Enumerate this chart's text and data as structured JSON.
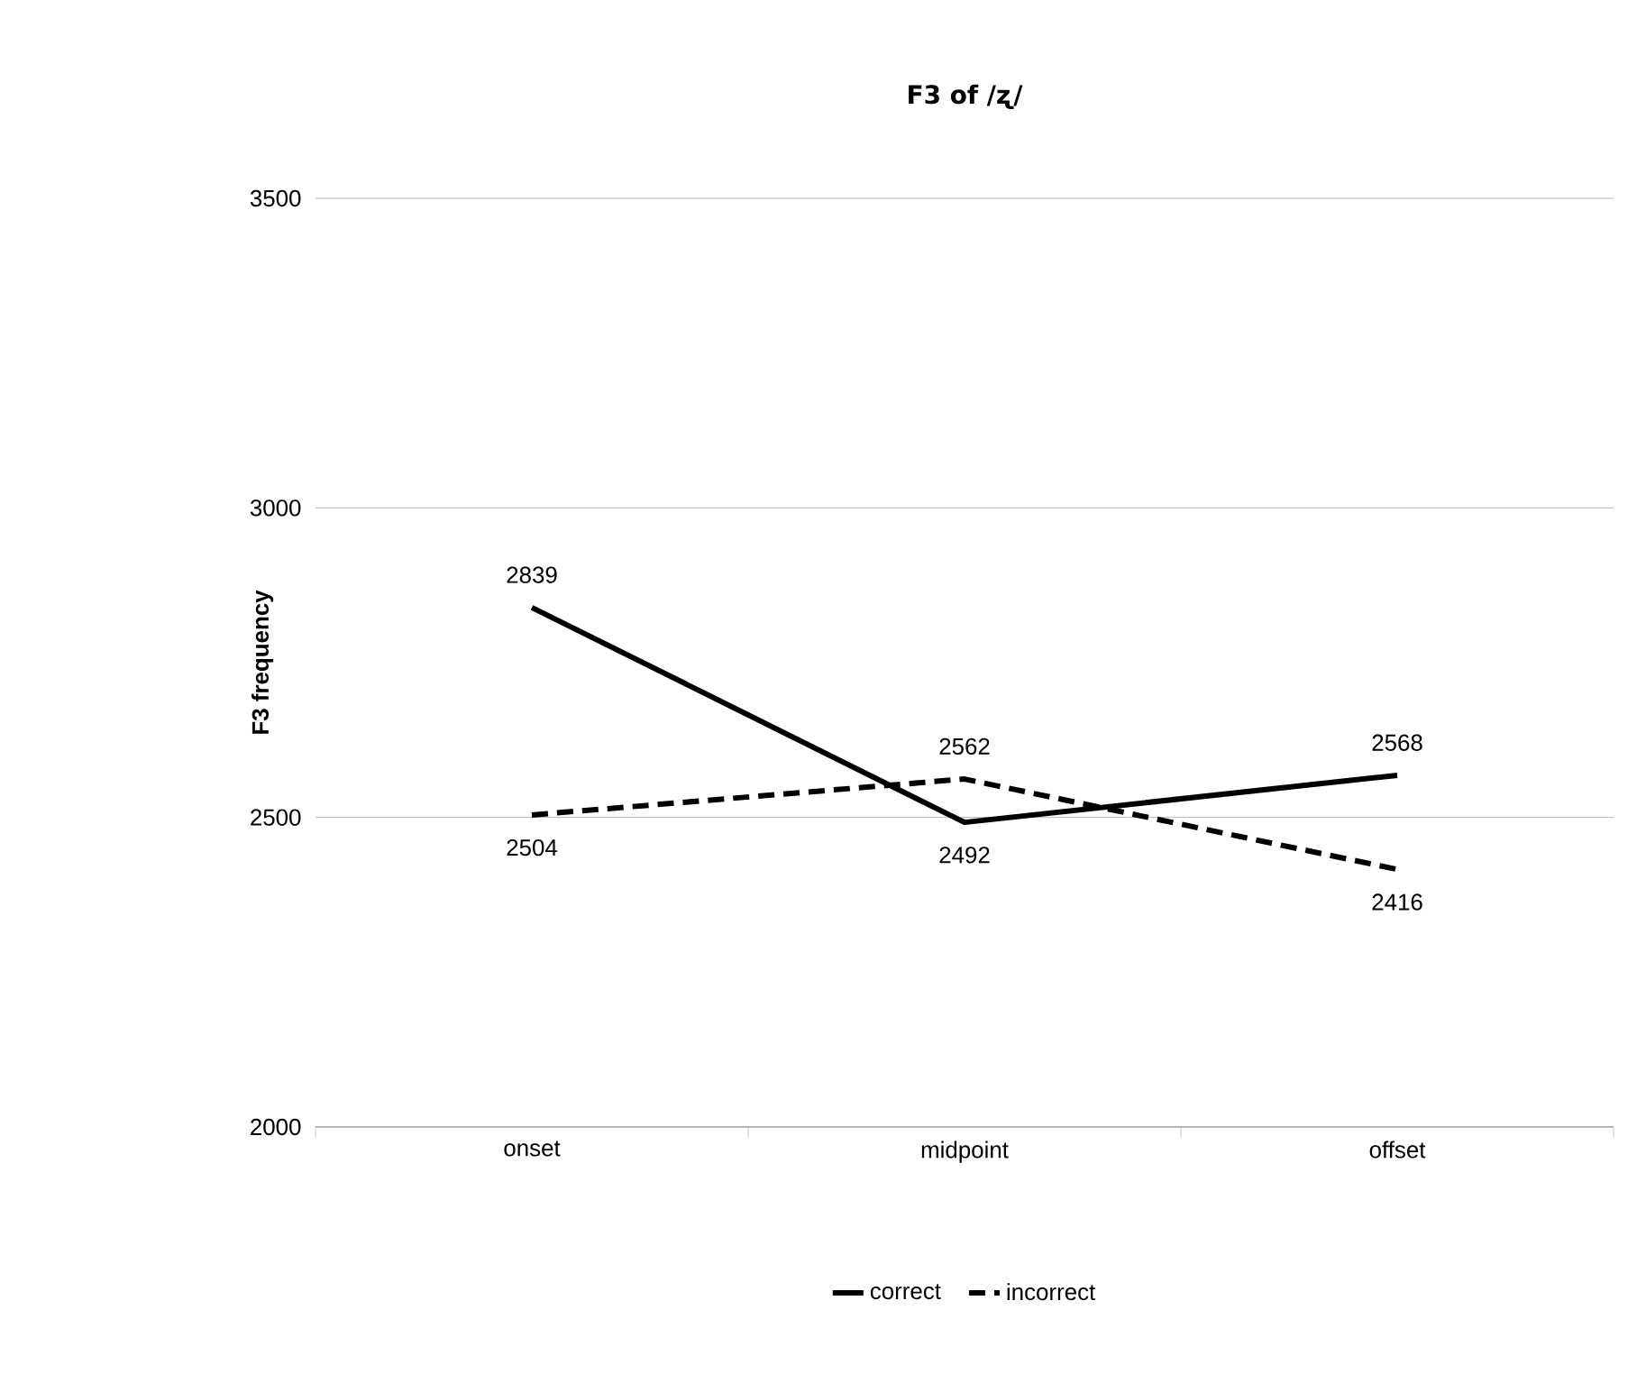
{
  "chart_data": {
    "type": "line",
    "title": "F3 of /ʐ/",
    "ylabel": "F3 frequency",
    "categories": [
      "onset",
      "midpoint",
      "offset"
    ],
    "series": [
      {
        "name": "correct",
        "color": "#000000",
        "values": [
          2839,
          2492,
          2568
        ],
        "line_style": "solid"
      },
      {
        "name": "incorrect",
        "color": "#000000",
        "values": [
          2504,
          2562,
          2416
        ],
        "line_style": "dashed"
      }
    ],
    "ylim": [
      2000,
      3500
    ],
    "yticks": [
      2000,
      2500,
      3000,
      3500
    ],
    "grid": "y",
    "legend": "bottom",
    "data_labels": true,
    "marker": "none"
  }
}
